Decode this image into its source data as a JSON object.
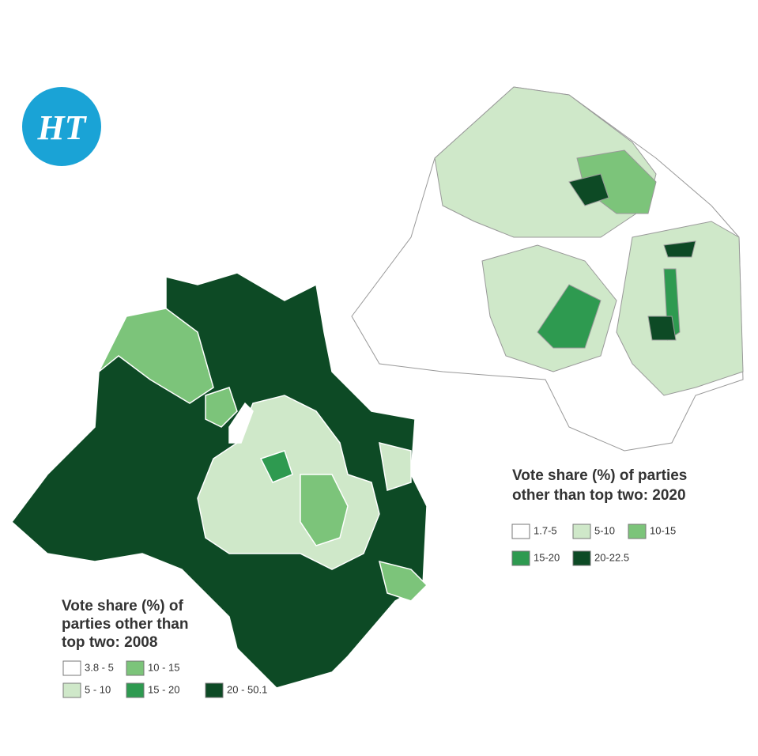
{
  "logo": "HT",
  "maps": [
    {
      "title_lines": [
        "Vote share (%) of parties",
        "other than top two: 2020"
      ],
      "legend": [
        {
          "label": "1.7-5",
          "color": "#ffffff"
        },
        {
          "label": "5-10",
          "color": "#cfe8c9"
        },
        {
          "label": "10-15",
          "color": "#7cc47a"
        },
        {
          "label": "15-20",
          "color": "#2e9a50"
        },
        {
          "label": "20-22.5",
          "color": "#0d4a25"
        }
      ]
    },
    {
      "title_lines": [
        "Vote share (%) of",
        "parties other than",
        "top two: 2008"
      ],
      "legend": [
        {
          "label": "3.8 - 5",
          "color": "#ffffff"
        },
        {
          "label": "5 - 10",
          "color": "#cfe8c9"
        },
        {
          "label": "10 - 15",
          "color": "#7cc47a"
        },
        {
          "label": "15 - 20",
          "color": "#2e9a50"
        },
        {
          "label": "20 - 50.1",
          "color": "#0d4a25"
        }
      ]
    }
  ]
}
